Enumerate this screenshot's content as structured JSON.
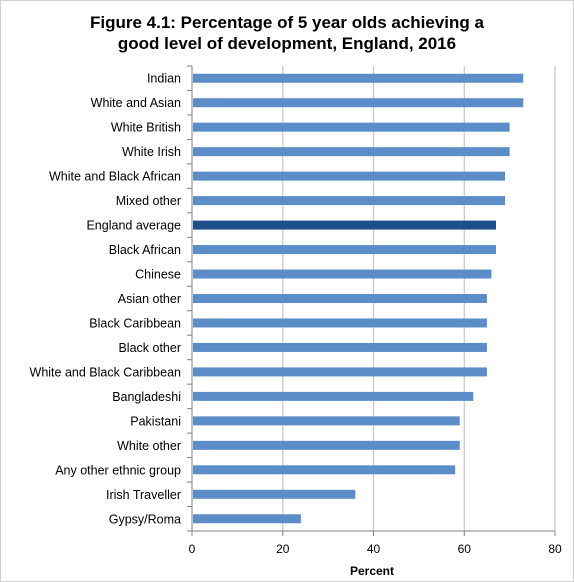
{
  "colors": {
    "bar": "#5b8ec8",
    "highlight": "#1f4e8c",
    "grid": "#c6c6c6",
    "axis": "#808080"
  },
  "chart_data": {
    "type": "bar",
    "orientation": "horizontal",
    "title_line1": "Figure 4.1: Percentage of 5 year olds achieving a",
    "title_line2": "good level of development, England, 2016",
    "xlabel": "Percent",
    "ylabel": "",
    "xlim": [
      0,
      80
    ],
    "xticks": [
      "0",
      "20",
      "40",
      "60",
      "80"
    ],
    "grid": true,
    "legend": "none",
    "highlight_category": "England average",
    "categories": [
      "Indian",
      "White and Asian",
      "White British",
      "White Irish",
      "White and Black African",
      "Mixed other",
      "England average",
      "Black African",
      "Chinese",
      "Asian other",
      "Black Caribbean",
      "Black other",
      "White and Black Caribbean",
      "Bangladeshi",
      "Pakistani",
      "White other",
      "Any other ethnic group",
      "Irish Traveller",
      "Gypsy/Roma"
    ],
    "values": [
      73,
      73,
      70,
      70,
      69,
      69,
      67,
      67,
      66,
      65,
      65,
      65,
      65,
      62,
      59,
      59,
      58,
      36,
      24
    ]
  }
}
